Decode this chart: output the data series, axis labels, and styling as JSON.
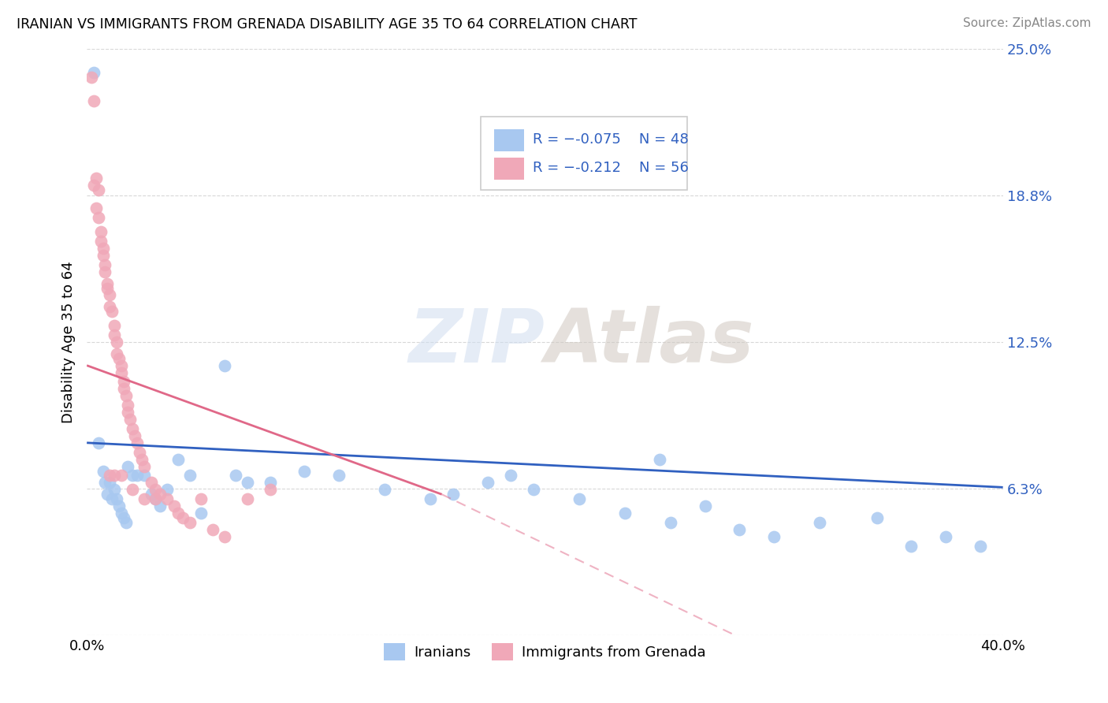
{
  "title": "IRANIAN VS IMMIGRANTS FROM GRENADA DISABILITY AGE 35 TO 64 CORRELATION CHART",
  "source": "Source: ZipAtlas.com",
  "ylabel": "Disability Age 35 to 64",
  "xmin": 0.0,
  "xmax": 0.4,
  "ymin": 0.0,
  "ymax": 0.25,
  "yticks": [
    0.0,
    0.0625,
    0.125,
    0.1875,
    0.25
  ],
  "ytick_labels": [
    "",
    "6.3%",
    "12.5%",
    "18.8%",
    "25.0%"
  ],
  "xticks": [
    0.0,
    0.1,
    0.2,
    0.3,
    0.4
  ],
  "xtick_labels": [
    "0.0%",
    "",
    "",
    "",
    "40.0%"
  ],
  "blue_color": "#a8c8f0",
  "pink_color": "#f0a8b8",
  "blue_line_color": "#3060c0",
  "pink_line_color": "#e06888",
  "grid_color": "#d8d8d8",
  "blue_r": "-0.075",
  "blue_n": "48",
  "pink_r": "-0.212",
  "pink_n": "56",
  "blue_scatter_x": [
    0.003,
    0.005,
    0.007,
    0.008,
    0.009,
    0.01,
    0.011,
    0.012,
    0.013,
    0.014,
    0.015,
    0.016,
    0.017,
    0.018,
    0.02,
    0.022,
    0.025,
    0.028,
    0.03,
    0.032,
    0.035,
    0.04,
    0.045,
    0.05,
    0.06,
    0.07,
    0.08,
    0.095,
    0.11,
    0.13,
    0.15,
    0.16,
    0.175,
    0.195,
    0.215,
    0.235,
    0.255,
    0.27,
    0.3,
    0.32,
    0.345,
    0.36,
    0.375,
    0.39,
    0.25,
    0.285,
    0.185,
    0.065
  ],
  "blue_scatter_y": [
    0.24,
    0.082,
    0.07,
    0.065,
    0.06,
    0.065,
    0.058,
    0.062,
    0.058,
    0.055,
    0.052,
    0.05,
    0.048,
    0.072,
    0.068,
    0.068,
    0.068,
    0.06,
    0.058,
    0.055,
    0.062,
    0.075,
    0.068,
    0.052,
    0.115,
    0.065,
    0.065,
    0.07,
    0.068,
    0.062,
    0.058,
    0.06,
    0.065,
    0.062,
    0.058,
    0.052,
    0.048,
    0.055,
    0.042,
    0.048,
    0.05,
    0.038,
    0.042,
    0.038,
    0.075,
    0.045,
    0.068,
    0.068
  ],
  "pink_scatter_x": [
    0.002,
    0.003,
    0.003,
    0.004,
    0.004,
    0.005,
    0.005,
    0.006,
    0.006,
    0.007,
    0.007,
    0.008,
    0.008,
    0.009,
    0.009,
    0.01,
    0.01,
    0.011,
    0.012,
    0.012,
    0.013,
    0.013,
    0.014,
    0.015,
    0.015,
    0.016,
    0.016,
    0.017,
    0.018,
    0.018,
    0.019,
    0.02,
    0.021,
    0.022,
    0.023,
    0.024,
    0.025,
    0.028,
    0.03,
    0.032,
    0.035,
    0.038,
    0.04,
    0.042,
    0.045,
    0.05,
    0.055,
    0.06,
    0.07,
    0.08,
    0.01,
    0.012,
    0.015,
    0.02,
    0.025,
    0.03
  ],
  "pink_scatter_y": [
    0.238,
    0.228,
    0.192,
    0.195,
    0.182,
    0.19,
    0.178,
    0.172,
    0.168,
    0.165,
    0.162,
    0.158,
    0.155,
    0.15,
    0.148,
    0.145,
    0.14,
    0.138,
    0.132,
    0.128,
    0.125,
    0.12,
    0.118,
    0.115,
    0.112,
    0.108,
    0.105,
    0.102,
    0.098,
    0.095,
    0.092,
    0.088,
    0.085,
    0.082,
    0.078,
    0.075,
    0.072,
    0.065,
    0.062,
    0.06,
    0.058,
    0.055,
    0.052,
    0.05,
    0.048,
    0.058,
    0.045,
    0.042,
    0.058,
    0.062,
    0.068,
    0.068,
    0.068,
    0.062,
    0.058,
    0.058
  ],
  "blue_trendline_x": [
    0.0,
    0.4
  ],
  "blue_trendline_y": [
    0.082,
    0.063
  ],
  "pink_trendline_x": [
    0.0,
    0.155
  ],
  "pink_trendline_y": [
    0.115,
    0.06
  ]
}
